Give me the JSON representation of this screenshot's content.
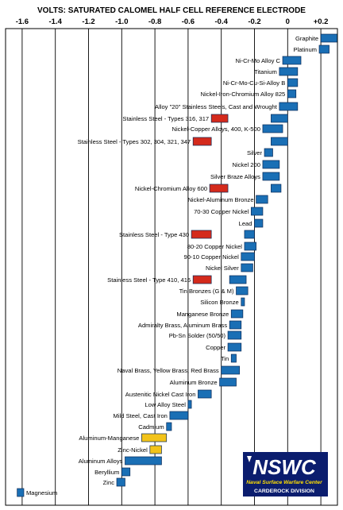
{
  "chart_data": {
    "type": "bar",
    "title": "VOLTS: SATURATED CALOMEL HALF CELL REFERENCE ELECTRODE",
    "xlim": [
      -1.7,
      0.3
    ],
    "x_ticks": [
      -1.6,
      -1.4,
      -1.2,
      -1.0,
      -0.8,
      -0.6,
      -0.4,
      -0.2,
      0,
      0.2
    ],
    "x_tick_labels": [
      "-1.6",
      "-1.4",
      "-1.2",
      "-1.0",
      "-0.8",
      "-0.6",
      "-0.4",
      "-0.2",
      "0",
      "+0.2"
    ],
    "colors": {
      "normal": "#1a6fb5",
      "active": "#d42a1c",
      "amalgam": "#f2c31a",
      "grid": "#000000"
    },
    "series": [
      {
        "name": "Graphite",
        "range": [
          0.2,
          0.3
        ],
        "color": "normal"
      },
      {
        "name": "Platinum",
        "range": [
          0.19,
          0.25
        ],
        "color": "normal"
      },
      {
        "name": "Ni-Cr-Mo Alloy C",
        "range": [
          -0.03,
          0.08
        ],
        "color": "normal"
      },
      {
        "name": "Titanium",
        "range": [
          -0.05,
          0.06
        ],
        "color": "normal"
      },
      {
        "name": "Ni-Cr-Mo-Cu-Si-Alloy B",
        "range": [
          -0.0,
          0.06
        ],
        "color": "normal"
      },
      {
        "name": "Nickel-Iron-Chromium Alloy 825",
        "range": [
          -0.0,
          0.05
        ],
        "color": "normal"
      },
      {
        "name": "Alloy \"20\" Stainless Steels, Cast and Wrought",
        "range": [
          -0.05,
          0.06
        ],
        "color": "normal"
      },
      {
        "name": "Stainless Steel - Types 316, 317",
        "range": [
          -0.1,
          0.0
        ],
        "color": "normal"
      },
      {
        "name": "Stainless Steel - Types 316, 317 (active)",
        "range": [
          -0.46,
          -0.36
        ],
        "color": "active"
      },
      {
        "name": "Nickel-Copper Alloys, 400, K-500",
        "range": [
          -0.15,
          -0.03
        ],
        "color": "normal"
      },
      {
        "name": "Stainless Steel - Types 302, 304, 321, 347",
        "range": [
          -0.1,
          0.0
        ],
        "color": "normal"
      },
      {
        "name": "Stainless Steel - Types 302, 304, 321, 347 (active)",
        "range": [
          -0.57,
          -0.46
        ],
        "color": "active"
      },
      {
        "name": "Silver",
        "range": [
          -0.14,
          -0.09
        ],
        "color": "normal"
      },
      {
        "name": "Nickel 200",
        "range": [
          -0.15,
          -0.05
        ],
        "color": "normal"
      },
      {
        "name": "Silver Braze Alloys",
        "range": [
          -0.15,
          -0.05
        ],
        "color": "normal"
      },
      {
        "name": "Nickel-Chromium Alloy 600",
        "range": [
          -0.1,
          -0.04
        ],
        "color": "normal"
      },
      {
        "name": "Nickel-Chromium Alloy 600 (active)",
        "range": [
          -0.47,
          -0.36
        ],
        "color": "active"
      },
      {
        "name": "Nickel-Aluminum Bronze",
        "range": [
          -0.19,
          -0.12
        ],
        "color": "normal"
      },
      {
        "name": "70-30 Copper Nickel",
        "range": [
          -0.22,
          -0.15
        ],
        "color": "normal"
      },
      {
        "name": "Lead",
        "range": [
          -0.2,
          -0.15
        ],
        "color": "normal"
      },
      {
        "name": "Stainless Steel - Type 430",
        "range": [
          -0.26,
          -0.2
        ],
        "color": "normal"
      },
      {
        "name": "Stainless Steel - Type 430 (active)",
        "range": [
          -0.58,
          -0.46
        ],
        "color": "active"
      },
      {
        "name": "80-20 Copper Nickel",
        "range": [
          -0.26,
          -0.19
        ],
        "color": "normal"
      },
      {
        "name": "90-10 Copper Nickel",
        "range": [
          -0.28,
          -0.2
        ],
        "color": "normal"
      },
      {
        "name": "Nickel Silver",
        "range": [
          -0.28,
          -0.21
        ],
        "color": "normal"
      },
      {
        "name": "Stainless Steel - Type 410, 416",
        "range": [
          -0.35,
          -0.25
        ],
        "color": "normal"
      },
      {
        "name": "Stainless Steel - Type 410, 416 (active)",
        "range": [
          -0.57,
          -0.46
        ],
        "color": "active"
      },
      {
        "name": "Tin Bronzes (G & M)",
        "range": [
          -0.31,
          -0.24
        ],
        "color": "normal"
      },
      {
        "name": "Silicon Bronze",
        "range": [
          -0.28,
          -0.26
        ],
        "color": "normal"
      },
      {
        "name": "Manganese Bronze",
        "range": [
          -0.34,
          -0.27
        ],
        "color": "normal"
      },
      {
        "name": "Admiralty Brass, Aluminum Brass",
        "range": [
          -0.35,
          -0.28
        ],
        "color": "normal"
      },
      {
        "name": "Pb-Sn Solder (50/50)",
        "range": [
          -0.36,
          -0.28
        ],
        "color": "normal"
      },
      {
        "name": "Copper",
        "range": [
          -0.36,
          -0.28
        ],
        "color": "normal"
      },
      {
        "name": "Tin",
        "range": [
          -0.34,
          -0.31
        ],
        "color": "normal"
      },
      {
        "name": "Naval Brass, Yellow Brass, Red Brass",
        "range": [
          -0.4,
          -0.29
        ],
        "color": "normal"
      },
      {
        "name": "Aluminum Bronze",
        "range": [
          -0.41,
          -0.31
        ],
        "color": "normal"
      },
      {
        "name": "Austenitic Nickel Cast Iron",
        "range": [
          -0.54,
          -0.46
        ],
        "color": "normal"
      },
      {
        "name": "Low Alloy Steel",
        "range": [
          -0.6,
          -0.58
        ],
        "color": "normal"
      },
      {
        "name": "Mild Steel, Cast Iron",
        "range": [
          -0.71,
          -0.6
        ],
        "color": "normal"
      },
      {
        "name": "Cadmium",
        "range": [
          -0.73,
          -0.7
        ],
        "color": "normal"
      },
      {
        "name": "Aluminum-Manganese",
        "range": [
          -0.88,
          -0.73
        ],
        "color": "amalgam"
      },
      {
        "name": "Zinc-Nickel",
        "range": [
          -0.83,
          -0.76
        ],
        "color": "amalgam"
      },
      {
        "name": "Aluminum Alloys",
        "range": [
          -0.98,
          -0.76
        ],
        "color": "normal"
      },
      {
        "name": "Beryllium",
        "range": [
          -1.0,
          -0.95
        ],
        "color": "normal"
      },
      {
        "name": "Zinc",
        "range": [
          -1.03,
          -0.98
        ],
        "color": "normal"
      },
      {
        "name": "Magnesium",
        "range": [
          -1.63,
          -1.59
        ],
        "color": "normal"
      }
    ],
    "logo": {
      "text": "NSWC",
      "subtitle": "Naval Surface Warfare Center",
      "division": "CARDEROCK DIVISION"
    }
  }
}
